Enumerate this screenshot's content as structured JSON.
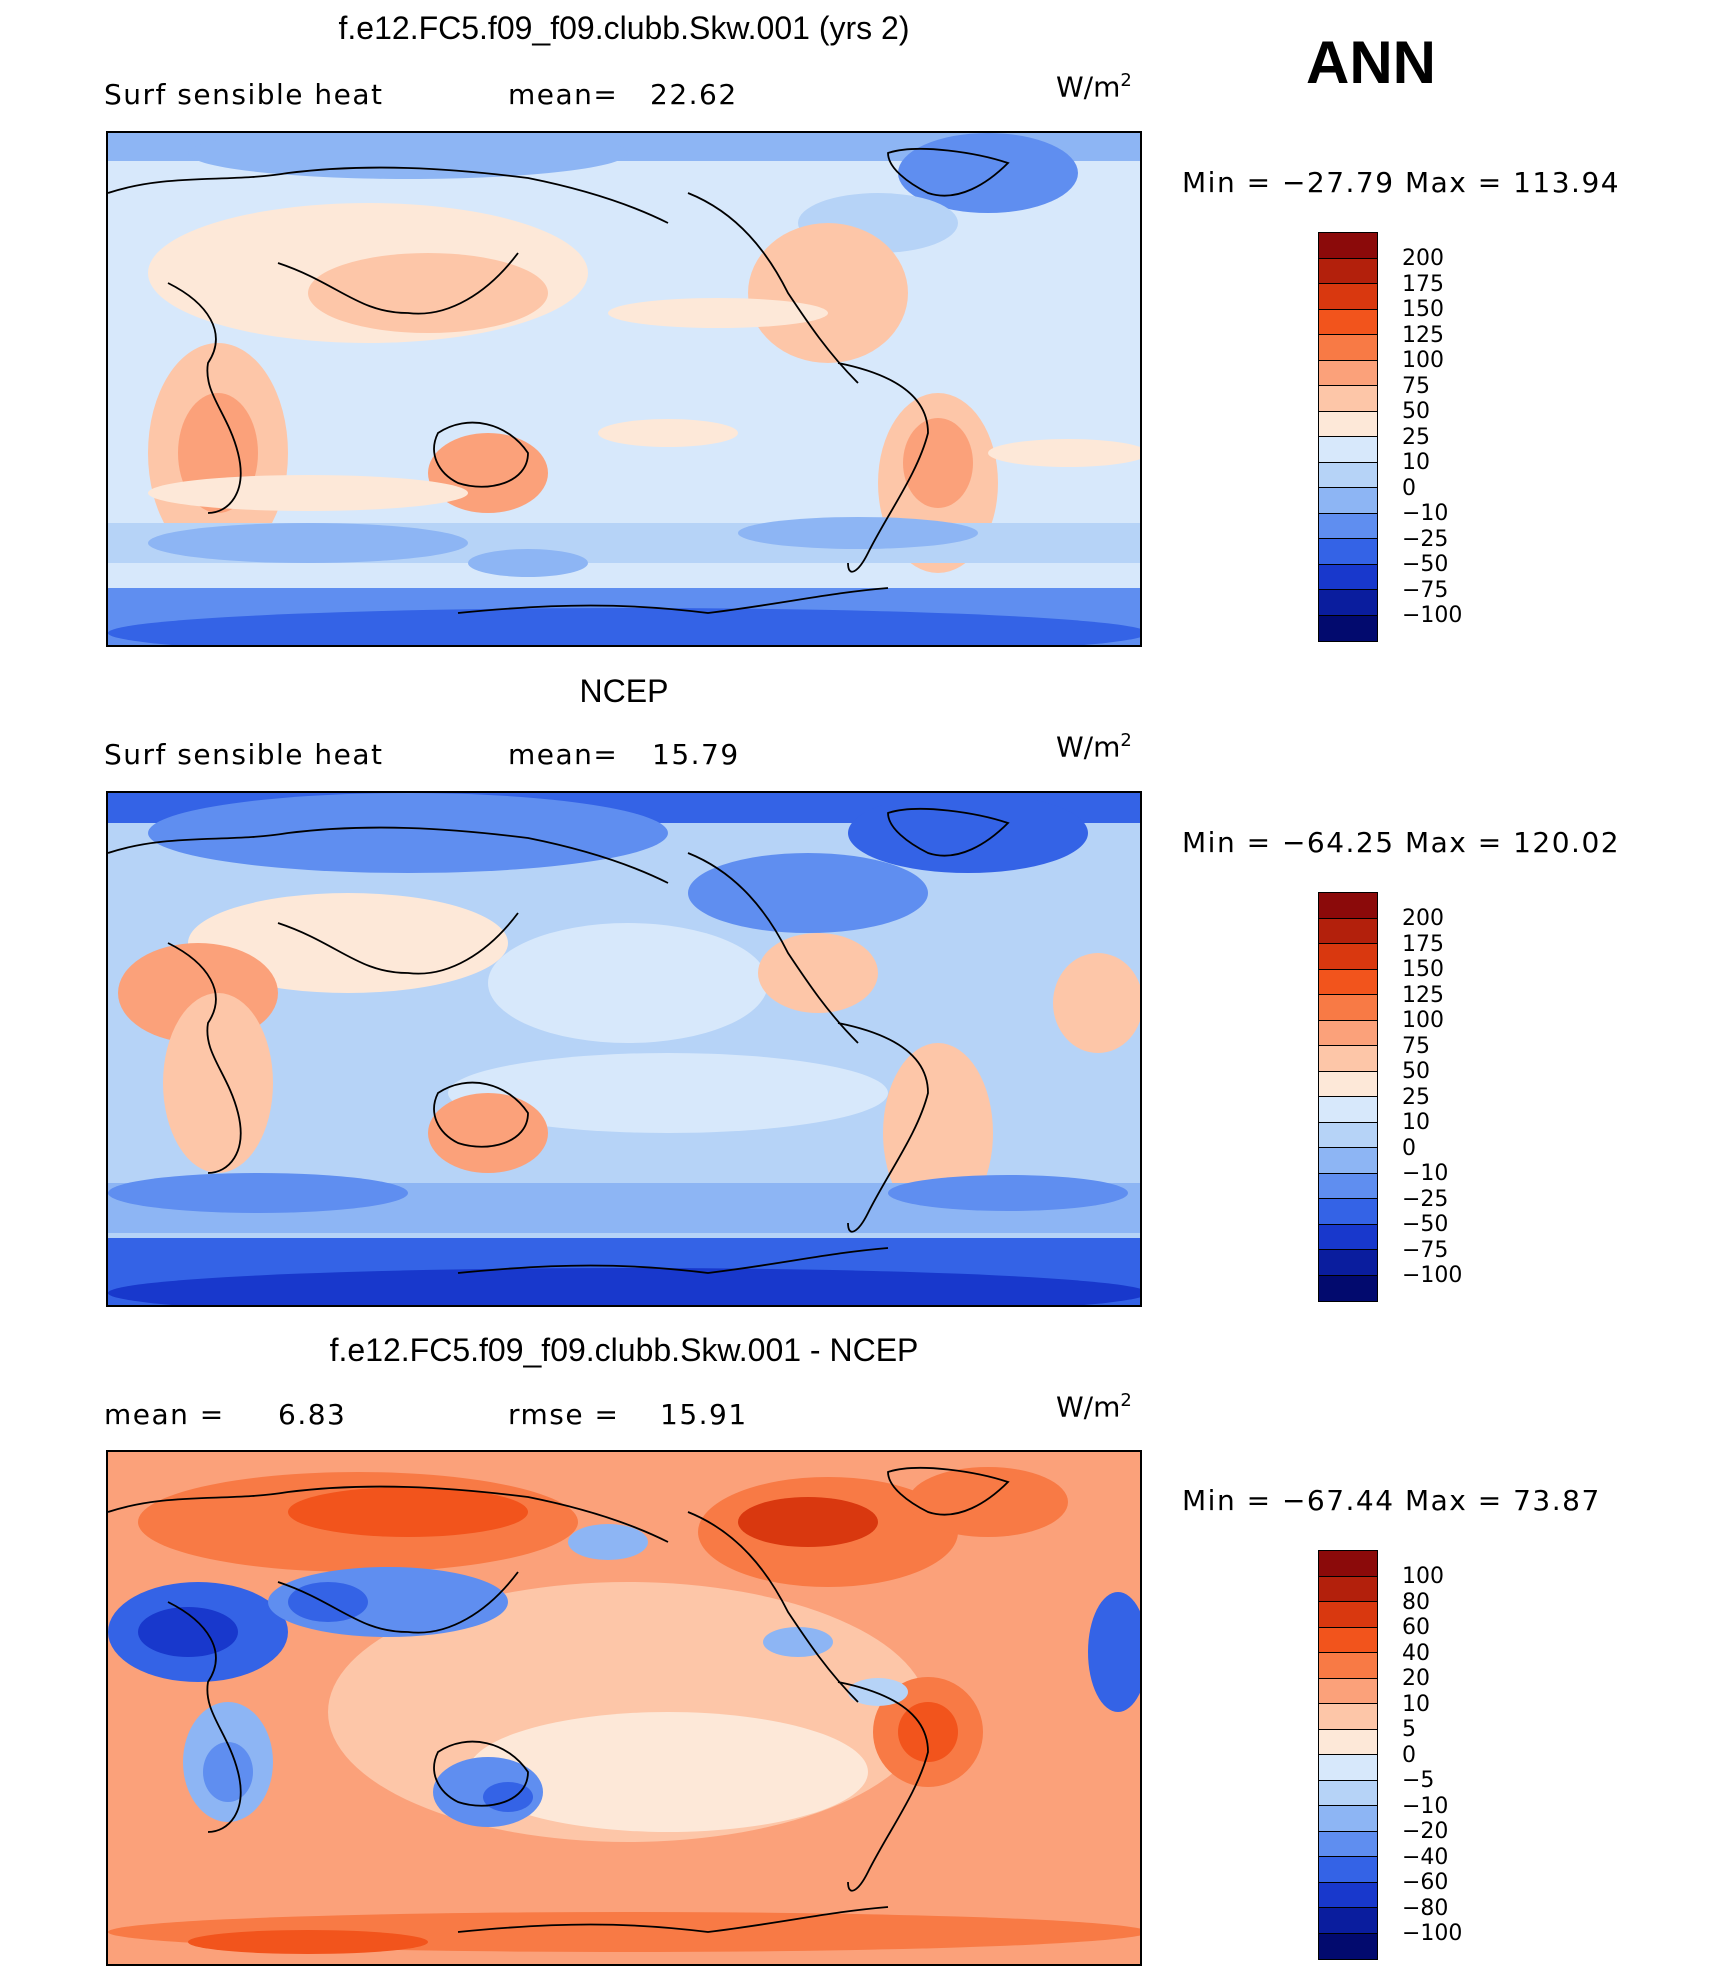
{
  "season": "ANN",
  "units": {
    "base": "W/m",
    "exp": "2"
  },
  "panels": [
    {
      "title": "f.e12.FC5.f09_f09.clubb.Skw.001 (yrs 2)",
      "left_label": "Surf  sensible  heat",
      "stat_label": "mean=",
      "stat_value": "22.62",
      "minmax": "Min  =  −27.79  Max  =  113.94",
      "colorbar": {
        "labels": [
          "200",
          "175",
          "150",
          "125",
          "100",
          "75",
          "50",
          "25",
          "10",
          "0",
          "−10",
          "−25",
          "−50",
          "−75",
          "−100"
        ],
        "colors": [
          "#8b0a0a",
          "#b3200c",
          "#d9380f",
          "#f2541c",
          "#f87a45",
          "#fba17a",
          "#fdc6a8",
          "#fde8d8",
          "#d7e8fb",
          "#b6d3f7",
          "#8db5f4",
          "#5f8ef0",
          "#3463e6",
          "#1838cc",
          "#0a1d9e",
          "#020a6e"
        ]
      }
    },
    {
      "title": "NCEP",
      "left_label": "Surf  sensible  heat",
      "stat_label": "mean=",
      "stat_value": "15.79",
      "minmax": "Min  =  −64.25  Max  =  120.02",
      "colorbar": {
        "labels": [
          "200",
          "175",
          "150",
          "125",
          "100",
          "75",
          "50",
          "25",
          "10",
          "0",
          "−10",
          "−25",
          "−50",
          "−75",
          "−100"
        ],
        "colors": [
          "#8b0a0a",
          "#b3200c",
          "#d9380f",
          "#f2541c",
          "#f87a45",
          "#fba17a",
          "#fdc6a8",
          "#fde8d8",
          "#d7e8fb",
          "#b6d3f7",
          "#8db5f4",
          "#5f8ef0",
          "#3463e6",
          "#1838cc",
          "#0a1d9e",
          "#020a6e"
        ]
      }
    },
    {
      "title": "f.e12.FC5.f09_f09.clubb.Skw.001 - NCEP",
      "left_label": "mean  =",
      "left_value": "6.83",
      "stat_label": "rmse  =",
      "stat_value": "15.91",
      "minmax": "Min  =  −67.44  Max  =    73.87",
      "colorbar": {
        "labels": [
          "100",
          "80",
          "60",
          "40",
          "20",
          "10",
          "5",
          "0",
          "−5",
          "−10",
          "−20",
          "−40",
          "−60",
          "−80",
          "−100"
        ],
        "colors": [
          "#8b0a0a",
          "#b3200c",
          "#d9380f",
          "#f2541c",
          "#f87a45",
          "#fba17a",
          "#fdc6a8",
          "#fde8d8",
          "#d7e8fb",
          "#b6d3f7",
          "#8db5f4",
          "#5f8ef0",
          "#3463e6",
          "#1838cc",
          "#0a1d9e",
          "#020a6e"
        ]
      }
    }
  ]
}
